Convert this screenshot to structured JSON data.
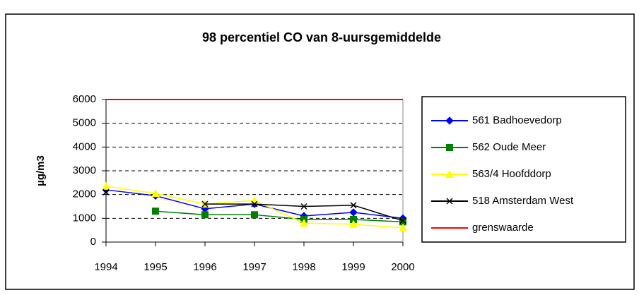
{
  "chart_data": {
    "type": "line",
    "title": "98 percentiel CO van 8-uursgemiddelde",
    "y_label": "µg/m3",
    "categories": [
      "1994",
      "1995",
      "1996",
      "1997",
      "1998",
      "1999",
      "2000"
    ],
    "series": [
      {
        "name": "561 Badhoevedorp",
        "color": "#0000ff",
        "marker": "diamond",
        "values": [
          2200,
          1950,
          1400,
          1600,
          1100,
          1250,
          1000
        ]
      },
      {
        "name": "562 Oude Meer",
        "color": "#008000",
        "marker": "square",
        "values": [
          null,
          1300,
          1150,
          1150,
          950,
          950,
          850
        ]
      },
      {
        "name": "563/4 Hoofddorp",
        "color": "#ffff00",
        "marker": "triangle",
        "values": [
          2350,
          2050,
          1600,
          1750,
          800,
          750,
          600
        ]
      },
      {
        "name": "518 Amsterdam West",
        "color": "#000000",
        "marker": "cross",
        "values": [
          2100,
          null,
          1600,
          1600,
          1500,
          1550,
          900
        ]
      },
      {
        "name": "grenswaarde",
        "color": "#ff0000",
        "marker": "none",
        "values": [
          6000,
          6000,
          6000,
          6000,
          6000,
          6000,
          6000
        ]
      }
    ],
    "ylim": [
      0,
      6000
    ],
    "yticks": [
      0,
      1000,
      2000,
      3000,
      4000,
      5000,
      6000
    ],
    "grid": true
  }
}
